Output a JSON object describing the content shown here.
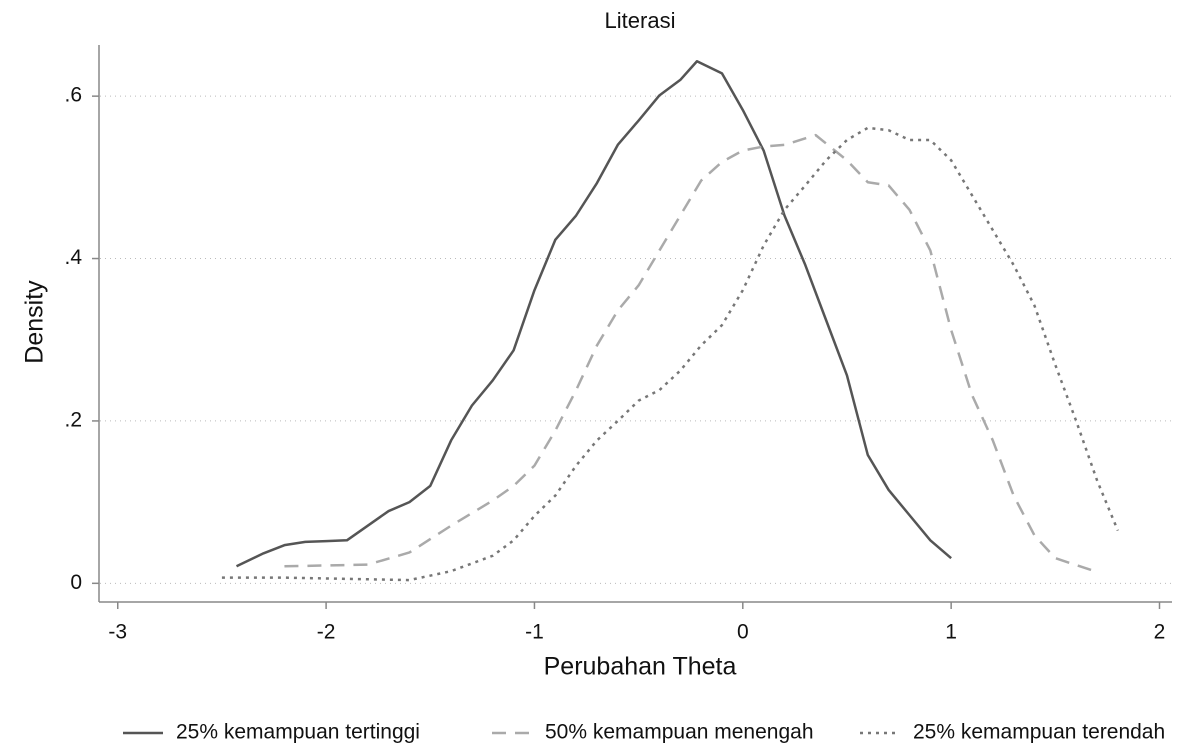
{
  "chart_data": {
    "type": "line",
    "title": "Literasi",
    "x_label": "Perubahan Theta",
    "y_label": "Density",
    "xlim": [
      -3.09,
      2.06
    ],
    "ylim": [
      -0.023,
      0.663
    ],
    "xticks": [
      -3,
      -2,
      -1,
      0,
      1,
      2
    ],
    "yticks": [
      0,
      {
        "value": 0.2,
        "label": ".2"
      },
      {
        "value": 0.4,
        "label": ".4"
      },
      {
        "value": 0.6,
        "label": ".6"
      }
    ],
    "grid": true,
    "legend": "bottom",
    "series": [
      {
        "name": "25% kemampuan tertinggi",
        "color": "#555555",
        "dash": "solid",
        "x": [
          -2.43,
          -2.3,
          -2.2,
          -2.1,
          -2.0,
          -1.9,
          -1.8,
          -1.7,
          -1.6,
          -1.5,
          -1.4,
          -1.3,
          -1.2,
          -1.1,
          -1.0,
          -0.9,
          -0.8,
          -0.7,
          -0.6,
          -0.5,
          -0.4,
          -0.3,
          -0.22,
          -0.1,
          0.0,
          0.1,
          0.2,
          0.3,
          0.4,
          0.5,
          0.6,
          0.7,
          0.8,
          0.9,
          1.0
        ],
        "values": [
          0.021,
          0.037,
          0.047,
          0.051,
          0.052,
          0.053,
          0.071,
          0.089,
          0.1,
          0.12,
          0.176,
          0.219,
          0.25,
          0.287,
          0.361,
          0.423,
          0.453,
          0.493,
          0.54,
          0.57,
          0.601,
          0.62,
          0.643,
          0.628,
          0.583,
          0.533,
          0.453,
          0.392,
          0.324,
          0.256,
          0.158,
          0.115,
          0.084,
          0.053,
          0.031
        ]
      },
      {
        "name": "50% kemampuan menengah",
        "color": "#aaaaaa",
        "dash": "dashed",
        "x": [
          -2.2,
          -2.0,
          -1.8,
          -1.6,
          -1.4,
          -1.2,
          -1.1,
          -1.0,
          -0.9,
          -0.8,
          -0.7,
          -0.6,
          -0.5,
          -0.4,
          -0.3,
          -0.2,
          -0.1,
          0.0,
          0.1,
          0.2,
          0.35,
          0.5,
          0.6,
          0.7,
          0.8,
          0.9,
          1.0,
          1.1,
          1.2,
          1.3,
          1.4,
          1.5,
          1.7
        ],
        "values": [
          0.021,
          0.022,
          0.023,
          0.038,
          0.071,
          0.102,
          0.12,
          0.145,
          0.188,
          0.238,
          0.293,
          0.336,
          0.367,
          0.41,
          0.453,
          0.496,
          0.519,
          0.533,
          0.538,
          0.54,
          0.552,
          0.521,
          0.494,
          0.49,
          0.46,
          0.41,
          0.312,
          0.232,
          0.176,
          0.108,
          0.059,
          0.031,
          0.014
        ]
      },
      {
        "name": "25% kemampuan terendah",
        "color": "#777777",
        "dash": "dotted",
        "x": [
          -2.5,
          -2.2,
          -2.0,
          -1.8,
          -1.6,
          -1.4,
          -1.2,
          -1.1,
          -1.0,
          -0.9,
          -0.8,
          -0.7,
          -0.6,
          -0.5,
          -0.4,
          -0.3,
          -0.2,
          -0.1,
          0.0,
          0.1,
          0.2,
          0.3,
          0.4,
          0.5,
          0.6,
          0.7,
          0.8,
          0.9,
          1.0,
          1.1,
          1.2,
          1.3,
          1.4,
          1.5,
          1.6,
          1.7,
          1.8
        ],
        "values": [
          0.007,
          0.007,
          0.006,
          0.005,
          0.004,
          0.015,
          0.034,
          0.053,
          0.083,
          0.108,
          0.145,
          0.176,
          0.2,
          0.225,
          0.238,
          0.262,
          0.293,
          0.318,
          0.361,
          0.416,
          0.46,
          0.49,
          0.521,
          0.546,
          0.561,
          0.558,
          0.546,
          0.546,
          0.521,
          0.478,
          0.435,
          0.392,
          0.342,
          0.269,
          0.2,
          0.127,
          0.065
        ]
      }
    ]
  }
}
